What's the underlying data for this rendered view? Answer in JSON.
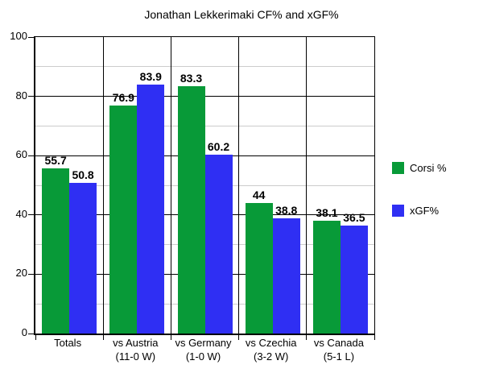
{
  "title": "Jonathan Lekkerimaki CF% and xGF%",
  "colors": {
    "corsi_green": "#089a38",
    "xgf_blue": "#2f2ff3",
    "major_grid": "#000000",
    "minor_grid": "#cccccc",
    "background": "#ffffff",
    "text": "#000000"
  },
  "legend": {
    "items": [
      {
        "label": "Corsi %",
        "color": "#089a38"
      },
      {
        "label": "xGF%",
        "color": "#2f2ff3"
      }
    ]
  },
  "y_axis": {
    "min": 0,
    "max": 100,
    "major_step": 20,
    "minor_step": 10,
    "tick_labels": [
      "0",
      "20",
      "40",
      "60",
      "80",
      "100"
    ]
  },
  "chart_data": {
    "type": "bar",
    "title": "Jonathan Lekkerimaki CF% and xGF%",
    "categories": [
      {
        "line1": "Totals",
        "line2": ""
      },
      {
        "line1": "vs Austria",
        "line2": "(11-0 W)"
      },
      {
        "line1": "vs Germany",
        "line2": "(1-0 W)"
      },
      {
        "line1": "vs Czechia",
        "line2": "(3-2 W)"
      },
      {
        "line1": "vs Canada",
        "line2": "(5-1 L)"
      }
    ],
    "series": [
      {
        "name": "Corsi %",
        "color": "#089a38",
        "values": [
          55.7,
          76.9,
          83.3,
          44,
          38.1
        ]
      },
      {
        "name": "xGF%",
        "color": "#2f2ff3",
        "values": [
          50.8,
          83.9,
          60.2,
          38.8,
          36.5
        ]
      }
    ],
    "xlabel": "",
    "ylabel": "",
    "ylim": [
      0,
      100
    ],
    "grid": "major black lines every 20, minor gray lines every 10",
    "legend_position": "right"
  }
}
